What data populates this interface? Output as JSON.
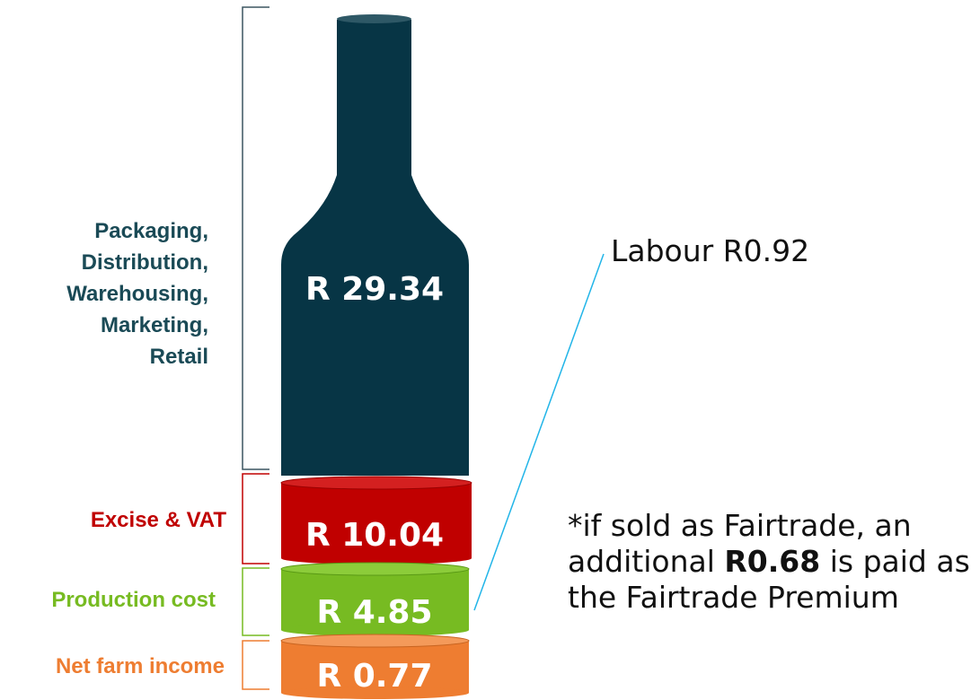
{
  "segments": [
    {
      "label_lines": [
        "Packaging,",
        "Distribution,",
        "Warehousing,",
        "Marketing,",
        "Retail"
      ],
      "value": "R 29.34"
    },
    {
      "label_lines": [
        "Excise & VAT"
      ],
      "value": "R 10.04"
    },
    {
      "label_lines": [
        "Production cost"
      ],
      "value": "R 4.85"
    },
    {
      "label_lines": [
        "Net farm income"
      ],
      "value": "R 0.77"
    }
  ],
  "labour": "Labour R0.92",
  "note": {
    "before": "*if sold as Fairtrade, an additional ",
    "amount": "R0.68",
    "after": " is paid as the Fairtrade Premium"
  }
}
